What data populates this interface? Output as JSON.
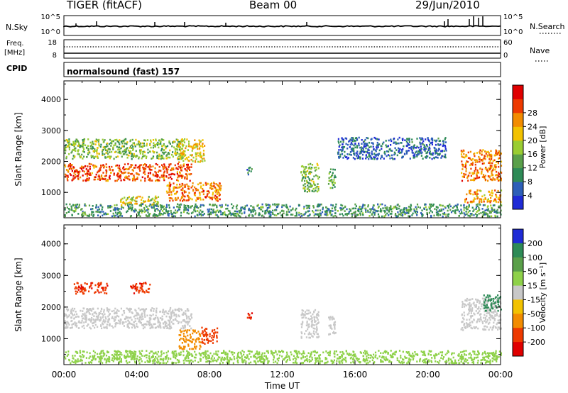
{
  "header": {
    "station": "TIGER (fitACF)",
    "beam": "Beam 00",
    "date": "29/Jun/2010"
  },
  "status_panels": {
    "nsky_label": "N.Sky",
    "nsky_ticks": [
      "10^5",
      "10^0"
    ],
    "nsearch_label": "N.Search",
    "nsearch_ticks": [
      "10^5",
      "10^0"
    ],
    "freq_label": "Freq.",
    "freq_unit": "[MHz]",
    "freq_ticks": [
      "18",
      "8"
    ],
    "nave_label": "Nave",
    "nave_ticks": [
      "60",
      "0"
    ],
    "cpid_label": "CPID",
    "cpid_text": "normalsound (fast) 157"
  },
  "chart_data": [
    {
      "type": "heatmap",
      "panel": "power",
      "ylabel": "Slant Range [km]",
      "ylim": [
        180,
        4600
      ],
      "yticks": [
        "1000",
        "2000",
        "3000",
        "4000"
      ],
      "x_range_hours": [
        0,
        24
      ],
      "colorbar": {
        "label": "Power [dB]",
        "ticks": [
          "4",
          "8",
          "12",
          "16",
          "20",
          "24",
          "28"
        ],
        "range": [
          0,
          32
        ],
        "colors": [
          "#1f2bd6",
          "#2d5fb8",
          "#2e8b57",
          "#5aa04a",
          "#9acd32",
          "#f2c200",
          "#f28c00",
          "#ee3a00",
          "#e00000"
        ]
      },
      "regions": [
        {
          "t0": 0.0,
          "t1": 7.0,
          "r0": 1400,
          "r1": 1950,
          "level": 26
        },
        {
          "t0": 0.0,
          "t1": 6.5,
          "r0": 2100,
          "r1": 2750,
          "level": 14
        },
        {
          "t0": 5.6,
          "t1": 8.6,
          "r0": 750,
          "r1": 1350,
          "level": 24
        },
        {
          "t0": 3.0,
          "t1": 5.2,
          "r0": 600,
          "r1": 900,
          "level": 18
        },
        {
          "t0": 6.2,
          "t1": 7.7,
          "r0": 2000,
          "r1": 2750,
          "level": 20
        },
        {
          "t0": 13.0,
          "t1": 14.0,
          "r0": 1050,
          "r1": 1950,
          "level": 14
        },
        {
          "t0": 14.5,
          "t1": 14.9,
          "r0": 1150,
          "r1": 1800,
          "level": 12
        },
        {
          "t0": 10.0,
          "t1": 10.3,
          "r0": 1600,
          "r1": 1850,
          "level": 8
        },
        {
          "t0": 21.8,
          "t1": 24.0,
          "r0": 1400,
          "r1": 2400,
          "level": 24
        },
        {
          "t0": 22.0,
          "t1": 24.0,
          "r0": 700,
          "r1": 1100,
          "level": 22
        },
        {
          "t0": 15.0,
          "t1": 21.0,
          "r0": 2100,
          "r1": 2800,
          "level": 6
        },
        {
          "t0": 0.0,
          "t1": 24.0,
          "r0": 250,
          "r1": 650,
          "level": 10
        }
      ]
    },
    {
      "type": "heatmap",
      "panel": "velocity",
      "ylabel": "Slant Range [km]",
      "ylim": [
        180,
        4600
      ],
      "yticks": [
        "1000",
        "2000",
        "3000",
        "4000"
      ],
      "xlabel": "Time UT",
      "xticks": [
        "00:00",
        "04:00",
        "08:00",
        "12:00",
        "16:00",
        "20:00",
        "00:00"
      ],
      "x_range_hours": [
        0,
        24
      ],
      "colorbar": {
        "label": "Velocity [m s⁻¹]",
        "ticks": [
          "200",
          "100",
          "50",
          "15",
          "-15",
          "-50",
          "-100",
          "-200"
        ],
        "colors": [
          "#1f2bd6",
          "#2e8b57",
          "#5aa04a",
          "#8ed149",
          "#c8c8c8",
          "#f2c200",
          "#f28c00",
          "#ee3a00",
          "#e00000"
        ]
      },
      "regions": [
        {
          "t0": 0.0,
          "t1": 7.0,
          "r0": 1350,
          "r1": 2000,
          "level": 0
        },
        {
          "t0": 0.5,
          "t1": 2.4,
          "r0": 2450,
          "r1": 2800,
          "level": -180
        },
        {
          "t0": 3.6,
          "t1": 4.7,
          "r0": 2450,
          "r1": 2800,
          "level": -180
        },
        {
          "t0": 6.3,
          "t1": 7.5,
          "r0": 700,
          "r1": 1300,
          "level": -80
        },
        {
          "t0": 7.5,
          "t1": 8.4,
          "r0": 850,
          "r1": 1400,
          "level": -160
        },
        {
          "t0": 13.0,
          "t1": 14.0,
          "r0": 1050,
          "r1": 1950,
          "level": 0
        },
        {
          "t0": 14.5,
          "t1": 14.9,
          "r0": 1150,
          "r1": 1800,
          "level": 0
        },
        {
          "t0": 10.0,
          "t1": 10.3,
          "r0": 1600,
          "r1": 1850,
          "level": -180
        },
        {
          "t0": 21.8,
          "t1": 24.0,
          "r0": 1300,
          "r1": 2300,
          "level": 0
        },
        {
          "t0": 23.0,
          "t1": 24.0,
          "r0": 1900,
          "r1": 2400,
          "level": 150
        },
        {
          "t0": 0.0,
          "t1": 24.0,
          "r0": 250,
          "r1": 650,
          "level": 30
        }
      ]
    }
  ]
}
